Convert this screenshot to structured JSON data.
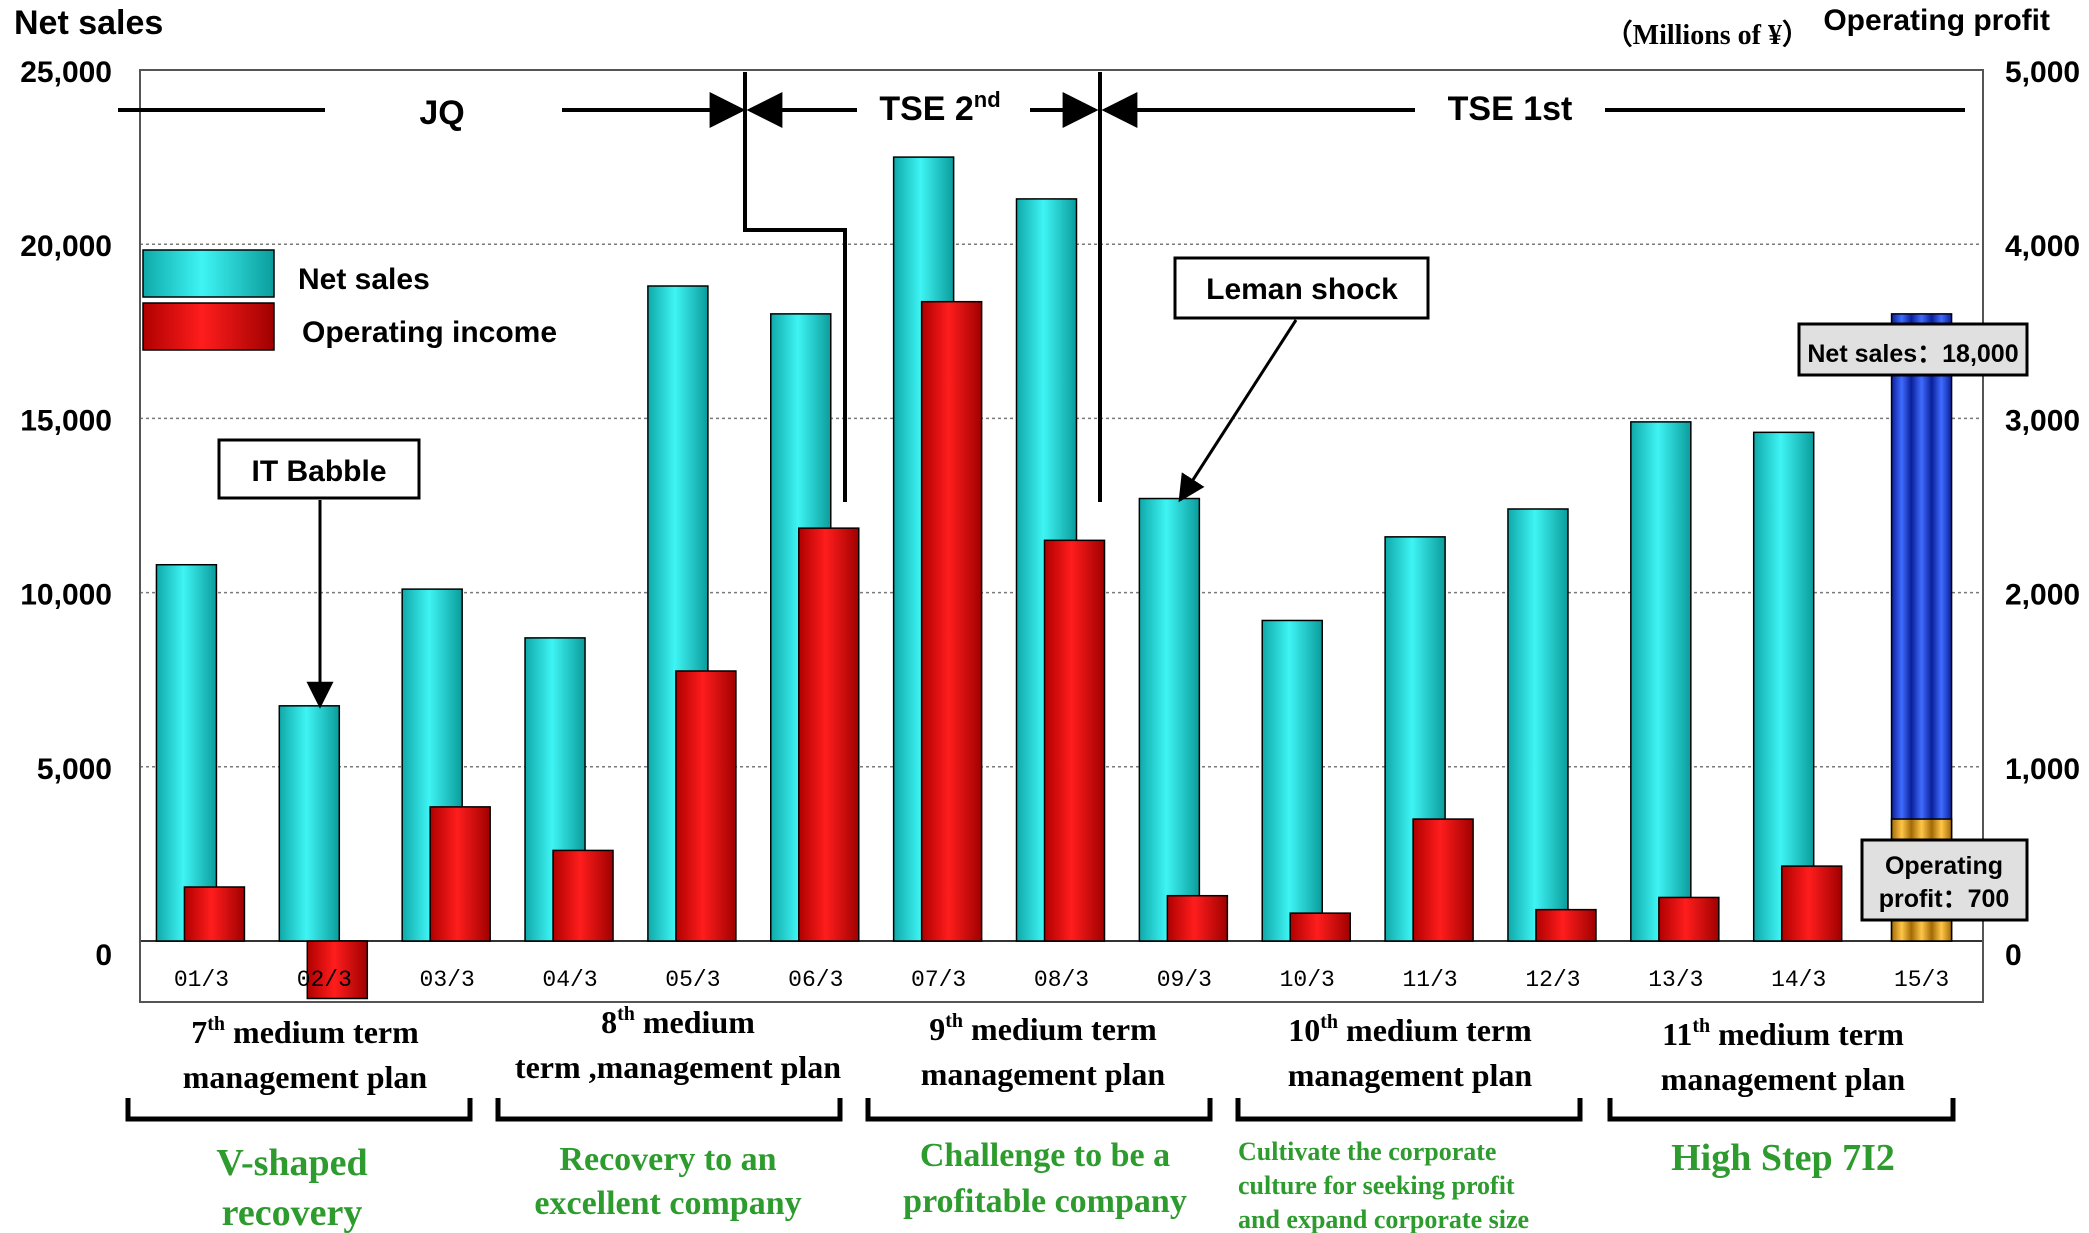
{
  "chart_data": {
    "type": "bar",
    "left_axis_title": "Net sales",
    "right_axis_title": "Operating profit",
    "unit_label": "（Millions of ¥）",
    "categories": [
      "01/3",
      "02/3",
      "03/3",
      "04/3",
      "05/3",
      "06/3",
      "07/3",
      "08/3",
      "09/3",
      "10/3",
      "11/3",
      "12/3",
      "13/3",
      "14/3",
      "15/3"
    ],
    "left_ticks": [
      "25,000",
      "20,000",
      "15,000",
      "10,000",
      "5,000",
      "0"
    ],
    "right_ticks": [
      "5,000",
      "4,000",
      "3,000",
      "2,000",
      "1,000",
      "0"
    ],
    "ylim_left": [
      0,
      25000
    ],
    "ylim_right": [
      0,
      5000
    ],
    "grid": true,
    "legend": {
      "position": "top-left",
      "entries": [
        {
          "label": "Net sales",
          "color": "#19d7d7"
        },
        {
          "label": "Operating income",
          "color": "#e01010"
        }
      ]
    },
    "series": [
      {
        "name": "Net sales",
        "axis": "left",
        "color": "#19d7d7",
        "values": [
          10800,
          6750,
          10100,
          8700,
          18800,
          18000,
          22500,
          21300,
          12700,
          9200,
          11600,
          12400,
          14900,
          14600,
          18000
        ]
      },
      {
        "name": "Operating income",
        "axis": "right",
        "color": "#e01010",
        "values": [
          310,
          -330,
          770,
          520,
          1550,
          2370,
          3670,
          2300,
          260,
          160,
          700,
          180,
          250,
          430,
          700
        ]
      }
    ],
    "forecast_index": 14,
    "forecast_colors": {
      "sales": "#1a3fd6",
      "profit": "#e6a21a"
    },
    "forecast_labels": {
      "sales": "Net sales：18,000",
      "profit_line1": "Operating",
      "profit_line2": "profit：700"
    },
    "markets": [
      {
        "label": "JQ"
      },
      {
        "label": "TSE 2",
        "sup": "nd"
      },
      {
        "label": "TSE 1st"
      }
    ],
    "callouts": [
      {
        "label": "IT Babble"
      },
      {
        "label": "Leman shock"
      }
    ],
    "plans": [
      {
        "num": "7",
        "sup": "th",
        "line1": " medium term",
        "line2": "management plan",
        "slogan": [
          "V-shaped",
          "recovery"
        ]
      },
      {
        "num": "8",
        "sup": "th",
        "line1": " medium",
        "line2": "term ,management plan",
        "slogan": [
          "Recovery to an",
          "excellent company"
        ]
      },
      {
        "num": "9",
        "sup": "th",
        "line1": " medium term",
        "line2": "management plan",
        "slogan": [
          "Challenge to be a",
          "profitable company"
        ]
      },
      {
        "num": "10",
        "sup": "th",
        "line1": " medium term",
        "line2": "management plan",
        "slogan": [
          "Cultivate the corporate",
          "culture for seeking profit",
          "and expand corporate size"
        ]
      },
      {
        "num": "11",
        "sup": "th",
        "line1": " medium term",
        "line2": "management plan",
        "slogan": [
          "High Step 7I2"
        ]
      }
    ]
  }
}
